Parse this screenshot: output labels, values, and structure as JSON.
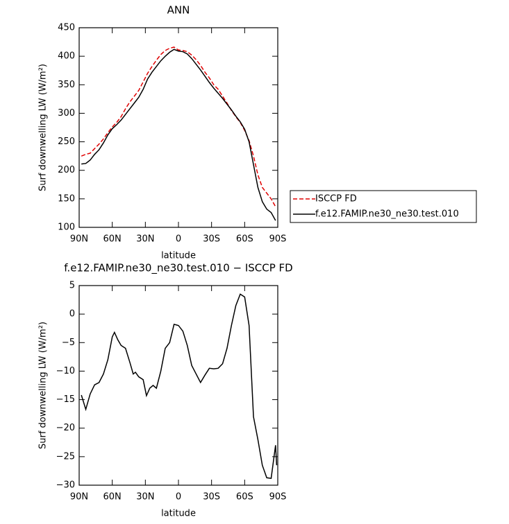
{
  "chart_data": [
    {
      "type": "line",
      "title": "ANN",
      "xlabel": "latitude",
      "ylabel": "Surf downwelling LW (W/m²)",
      "x": [
        88,
        84,
        80,
        76,
        72,
        68,
        64,
        60,
        56,
        52,
        48,
        44,
        40,
        36,
        32,
        28,
        24,
        20,
        16,
        12,
        8,
        4,
        0,
        -4,
        -8,
        -12,
        -16,
        -20,
        -24,
        -28,
        -32,
        -36,
        -40,
        -44,
        -48,
        -52,
        -56,
        -60,
        -64,
        -68,
        -72,
        -76,
        -80,
        -84,
        -88
      ],
      "xlim": [
        90,
        -90
      ],
      "xticks": [
        {
          "value": 90,
          "label": "90N"
        },
        {
          "value": 60,
          "label": "60N"
        },
        {
          "value": 30,
          "label": "30N"
        },
        0,
        {
          "value": -30,
          "label": "30S"
        },
        {
          "value": -60,
          "label": "60S"
        },
        {
          "value": -90,
          "label": "90S"
        }
      ],
      "ylim": [
        100,
        450
      ],
      "yticks": [
        100,
        150,
        200,
        250,
        300,
        350,
        400,
        450
      ],
      "legend": "outside right",
      "series": [
        {
          "name": "ISCCP FD",
          "color": "#e00000",
          "dash": true,
          "values": [
            225,
            228,
            230,
            238,
            246,
            255,
            266,
            276,
            284,
            294,
            308,
            320,
            330,
            340,
            355,
            370,
            382,
            393,
            403,
            410,
            414,
            416,
            411,
            410,
            408,
            402,
            394,
            384,
            372,
            362,
            350,
            342,
            330,
            318,
            305,
            294,
            284,
            270,
            252,
            225,
            192,
            170,
            160,
            150,
            136
          ]
        },
        {
          "name": "f.e12.FAMIP.ne30_ne30.test.010",
          "color": "#000000",
          "dash": false,
          "values": [
            211,
            212,
            218,
            228,
            236,
            248,
            262,
            273,
            280,
            288,
            298,
            308,
            318,
            328,
            342,
            360,
            372,
            382,
            392,
            400,
            407,
            412,
            409,
            408,
            404,
            396,
            386,
            376,
            365,
            354,
            344,
            335,
            326,
            316,
            306,
            295,
            285,
            272,
            250,
            210,
            170,
            145,
            132,
            126,
            112
          ]
        }
      ]
    },
    {
      "type": "line",
      "title": "f.e12.FAMIP.ne30_ne30.test.010 − ISCCP FD",
      "xlabel": "latitude",
      "ylabel": "Surf downwelling LW (W/m²)",
      "x": [
        88,
        84,
        80,
        76,
        72,
        68,
        64,
        60,
        58,
        55,
        52,
        48,
        44,
        41,
        39,
        36,
        32,
        29,
        26,
        23,
        20,
        16,
        12,
        8,
        4,
        0,
        -4,
        -8,
        -12,
        -16,
        -20,
        -24,
        -28,
        -32,
        -36,
        -40,
        -44,
        -48,
        -52,
        -56,
        -60,
        -64,
        -68,
        -72,
        -76,
        -80,
        -84,
        -88,
        -89
      ],
      "xlim": [
        90,
        -90
      ],
      "xticks": [
        {
          "value": 90,
          "label": "90N"
        },
        {
          "value": 60,
          "label": "60N"
        },
        {
          "value": 30,
          "label": "30N"
        },
        0,
        {
          "value": -30,
          "label": "30S"
        },
        {
          "value": -60,
          "label": "60S"
        },
        {
          "value": -90,
          "label": "90S"
        }
      ],
      "ylim": [
        -30,
        5
      ],
      "yticks": [
        5,
        0,
        {
          "value": -5,
          "label": "−5"
        },
        {
          "value": -10,
          "label": "−10"
        },
        {
          "value": -15,
          "label": "−15"
        },
        {
          "value": -20,
          "label": "−20"
        },
        {
          "value": -25,
          "label": "−25"
        },
        {
          "value": -30,
          "label": "−30"
        }
      ],
      "series": [
        {
          "color": "#000000",
          "dash": false,
          "values": [
            -14.2,
            -16.7,
            -14,
            -12.4,
            -12,
            -10.5,
            -8,
            -4,
            -3.2,
            -4.5,
            -5.5,
            -6,
            -8.5,
            -10.5,
            -10.2,
            -11,
            -11.5,
            -14.3,
            -13,
            -12.5,
            -13,
            -10,
            -6,
            -5,
            -1.8,
            -2,
            -3,
            -5.5,
            -9,
            -10.5,
            -12,
            -10.7,
            -9.5,
            -9.6,
            -9.5,
            -8.7,
            -6,
            -2,
            1.5,
            3.5,
            3,
            -2,
            -18,
            -22,
            -26.5,
            -28.7,
            -28.8,
            -23,
            -26.5
          ]
        }
      ]
    }
  ]
}
